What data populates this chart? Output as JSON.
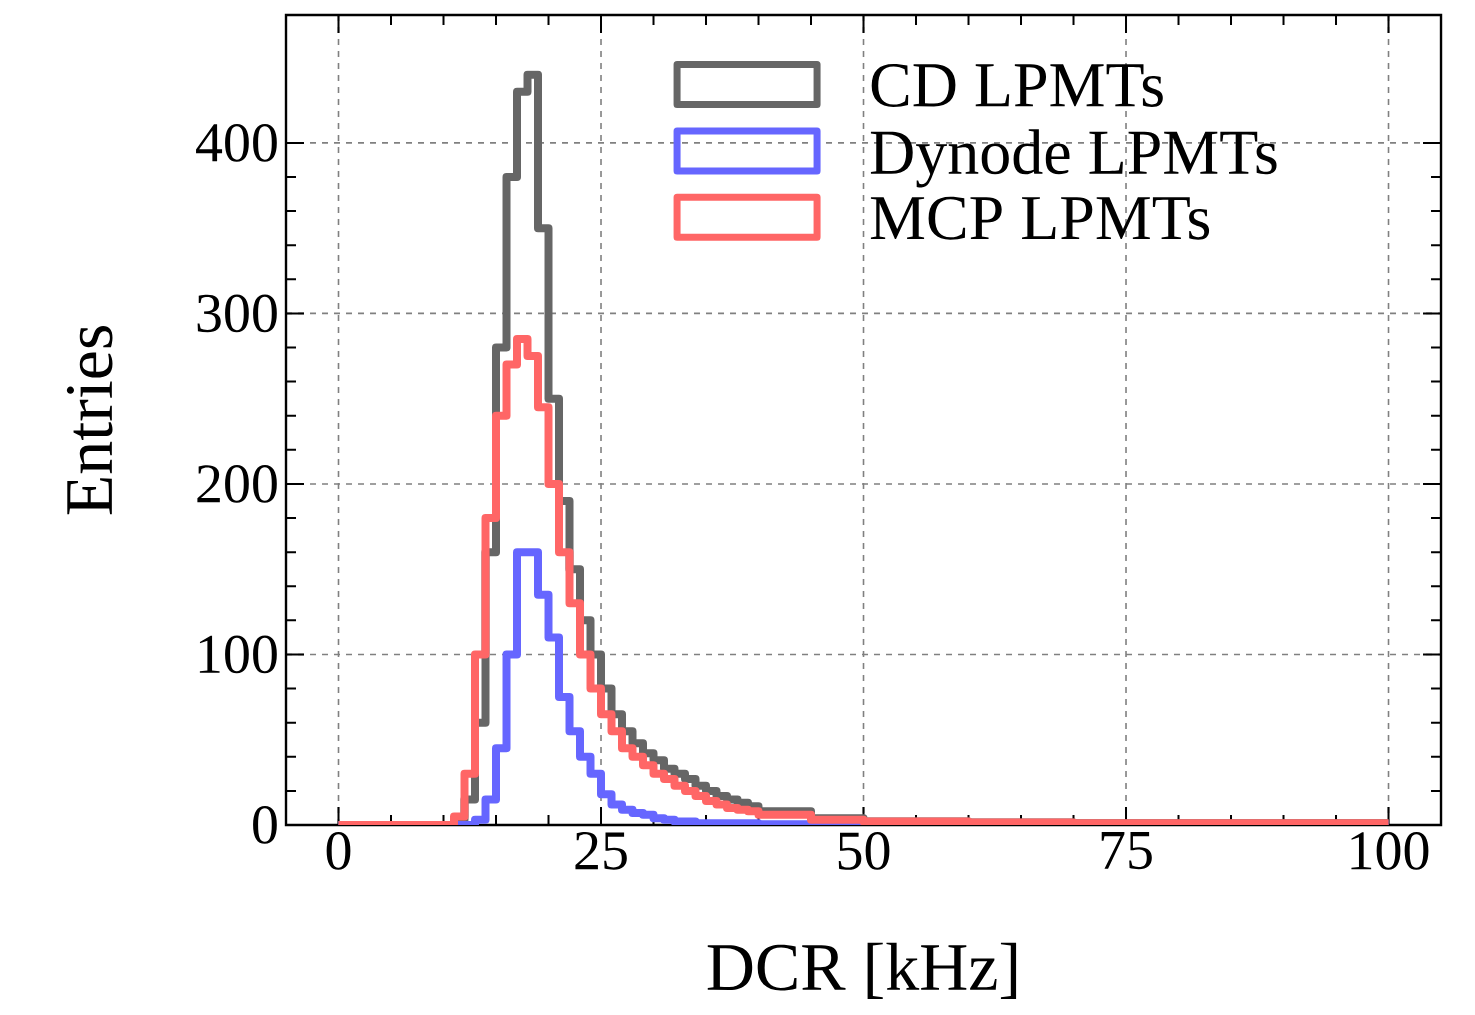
{
  "chart_data": {
    "type": "histogram",
    "xlabel": "DCR [kHz]",
    "ylabel": "Entries",
    "bins": [
      0,
      10,
      11,
      12,
      13,
      14,
      15,
      16,
      17,
      18,
      19,
      20,
      21,
      22,
      23,
      24,
      25,
      26,
      27,
      28,
      29,
      30,
      31,
      32,
      33,
      34,
      35,
      36,
      37,
      38,
      39,
      40,
      45,
      50,
      60,
      70,
      80,
      90,
      100
    ],
    "series": [
      {
        "name": "CD LPMTs",
        "color": "#666666",
        "values": [
          0,
          0,
          3,
          15,
          60,
          160,
          280,
          380,
          430,
          440,
          350,
          250,
          190,
          150,
          120,
          100,
          80,
          65,
          55,
          48,
          42,
          38,
          33,
          30,
          27,
          23,
          20,
          17,
          15,
          13,
          11,
          8,
          4,
          2,
          1.5,
          1,
          1,
          1
        ]
      },
      {
        "name": "Dynode LPMTs",
        "color": "#6666ff",
        "values": [
          0,
          0,
          0,
          0,
          3,
          15,
          45,
          100,
          160,
          160,
          135,
          110,
          75,
          55,
          40,
          30,
          18,
          12,
          9,
          7,
          6,
          4,
          3,
          2,
          2,
          1,
          1,
          1,
          1,
          1,
          1,
          0.5,
          0.5,
          0.5,
          0.5,
          0.5,
          0.5,
          0.5
        ]
      },
      {
        "name": "MCP LPMTs",
        "color": "#ff6666",
        "values": [
          0,
          0,
          5,
          30,
          100,
          180,
          240,
          270,
          285,
          275,
          245,
          200,
          160,
          130,
          100,
          80,
          65,
          55,
          45,
          40,
          35,
          30,
          27,
          23,
          20,
          17,
          14,
          12,
          10,
          9,
          8,
          6,
          3,
          2,
          1.5,
          1,
          1,
          1
        ]
      }
    ],
    "xlim": [
      -5,
      105
    ],
    "ylim": [
      0,
      475
    ],
    "xticks": [
      0,
      25,
      50,
      75,
      100
    ],
    "yticks": [
      0,
      100,
      200,
      300,
      400
    ],
    "grid": true,
    "legend": "top right"
  }
}
